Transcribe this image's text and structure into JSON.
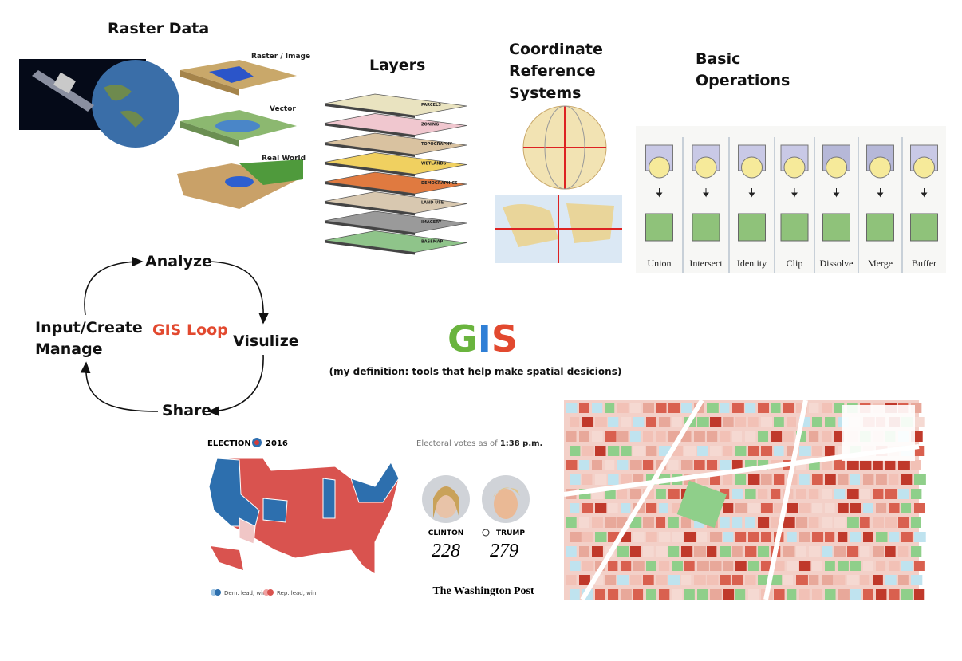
{
  "raster_data": {
    "title": "Raster Data",
    "labels": [
      "Raster / Image",
      "Vector",
      "Real World"
    ]
  },
  "layers": {
    "title": "Layers",
    "labels": [
      "PARCELS",
      "ZONING",
      "TOPOGRAPHY",
      "WETLANDS",
      "DEMOGRAPHICS",
      "LAND USE",
      "IMAGERY",
      "BASEMAP"
    ]
  },
  "crs": {
    "title": [
      "Coordinate",
      "Reference",
      "Systems"
    ]
  },
  "operations": {
    "title": [
      "Basic",
      "Operations"
    ],
    "names": [
      "Union",
      "Intersect",
      "Identity",
      "Clip",
      "Dissolve",
      "Merge",
      "Buffer"
    ]
  },
  "loop": {
    "title": "GIS Loop",
    "analyze": "Analyze",
    "visualize": "Visulize",
    "share": "Share",
    "input": [
      "Input/Create",
      "Manage"
    ]
  },
  "gis": {
    "letters": [
      "G",
      "I",
      "S"
    ],
    "definition": "(my definition: tools that help make spatial desicions)"
  },
  "election": {
    "title": "ELECTION",
    "year": "2016",
    "timestamp": [
      "Electoral votes as of",
      "1:38 p.m."
    ],
    "candidates": [
      {
        "name": "CLINTON",
        "votes": 228
      },
      {
        "name": "TRUMP",
        "votes": 279
      }
    ],
    "legend": [
      "Dem. lead, win",
      "Rep. lead, win"
    ],
    "source": "The Washington Post"
  }
}
